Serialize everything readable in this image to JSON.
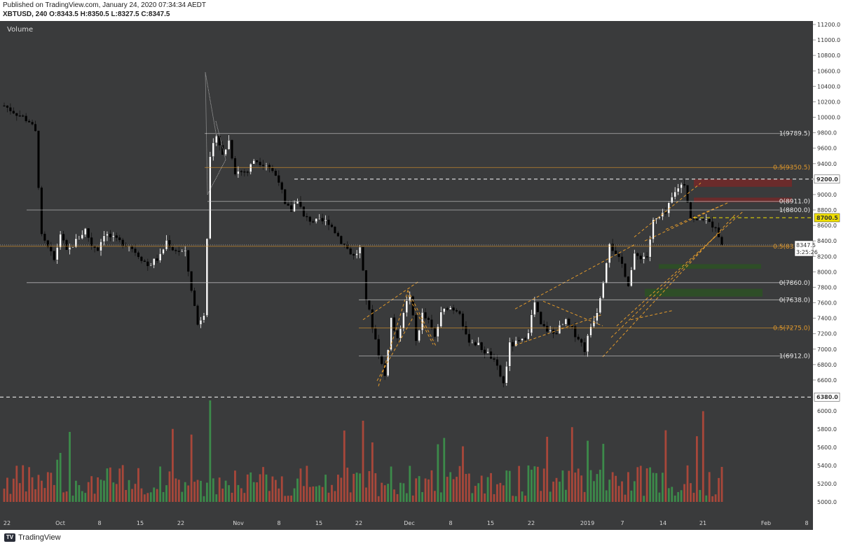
{
  "header": {
    "published": "Published on TradingView.com, January 24, 2020 07:34:34 AEDT",
    "symbol_line": "XBTUSD, 240 O:8343.5 H:8350.5 L:8327.5 C:8347.5"
  },
  "pane": {
    "volume_label": "Volume"
  },
  "colors": {
    "background": "#3a3b3c",
    "up_candle": "#ffffff",
    "down_candle": "#000000",
    "volume_up": "#3c8a4a",
    "volume_down": "#a8473a",
    "fib_orange": "#e39a2b",
    "resistance_zone": "#6e2a2a",
    "support_zone": "#2d4f26"
  },
  "footer": {
    "brand": "TradingView"
  },
  "chart_data": {
    "type": "candlestick",
    "title": "XBTUSD, 240",
    "timeframe": "4h",
    "ohlc_last": {
      "open": 8343.5,
      "high": 8350.5,
      "low": 8327.5,
      "close": 8347.5
    },
    "price_axis": {
      "ylim": [
        6300,
        11200
      ],
      "ticks": [
        "11200.0",
        "11000.0",
        "10800.0",
        "10600.0",
        "10400.0",
        "10200.0",
        "10000.0",
        "9800.0",
        "9600.0",
        "9400.0",
        "9200.0",
        "9000.0",
        "8800.0",
        "8600.0",
        "8400.0",
        "8200.0",
        "8000.0",
        "7800.0",
        "7600.0",
        "7400.0",
        "7200.0",
        "7000.0",
        "6800.0",
        "6600.0"
      ]
    },
    "volume_axis": {
      "ticks": [
        "6000.0",
        "5800.0",
        "5600.0",
        "5400.0",
        "5200.0",
        "5000.0"
      ]
    },
    "x_axis": {
      "ticks": [
        "22",
        "Oct",
        "8",
        "15",
        "22",
        "Nov",
        "8",
        "15",
        "22",
        "Dec",
        "8",
        "15",
        "22",
        "2019",
        "7",
        "14",
        "21",
        "Feb",
        "8"
      ]
    },
    "price_path": [
      [
        0,
        10150
      ],
      [
        4,
        10050
      ],
      [
        8,
        9950
      ],
      [
        10,
        9800
      ],
      [
        12,
        8450
      ],
      [
        14,
        8300
      ],
      [
        16,
        8150
      ],
      [
        18,
        8500
      ],
      [
        20,
        8250
      ],
      [
        22,
        8350
      ],
      [
        26,
        8550
      ],
      [
        28,
        8350
      ],
      [
        30,
        8300
      ],
      [
        32,
        8500
      ],
      [
        36,
        8400
      ],
      [
        40,
        8350
      ],
      [
        44,
        8180
      ],
      [
        46,
        8080
      ],
      [
        50,
        8200
      ],
      [
        52,
        8400
      ],
      [
        54,
        8300
      ],
      [
        58,
        8240
      ],
      [
        62,
        7320
      ],
      [
        64,
        7480
      ],
      [
        66,
        9450
      ],
      [
        68,
        9800
      ],
      [
        70,
        9500
      ],
      [
        72,
        9700
      ],
      [
        74,
        9300
      ],
      [
        78,
        9300
      ],
      [
        80,
        9450
      ],
      [
        84,
        9400
      ],
      [
        88,
        9200
      ],
      [
        90,
        8850
      ],
      [
        92,
        8800
      ],
      [
        94,
        8950
      ],
      [
        96,
        8700
      ],
      [
        100,
        8650
      ],
      [
        104,
        8650
      ],
      [
        108,
        8400
      ],
      [
        112,
        8200
      ],
      [
        114,
        8300
      ],
      [
        116,
        7650
      ],
      [
        118,
        7300
      ],
      [
        120,
        6950
      ],
      [
        122,
        6650
      ],
      [
        124,
        7400
      ],
      [
        126,
        7100
      ],
      [
        128,
        7500
      ],
      [
        130,
        7700
      ],
      [
        132,
        7100
      ],
      [
        134,
        7450
      ],
      [
        136,
        7350
      ],
      [
        138,
        7150
      ],
      [
        140,
        7450
      ],
      [
        142,
        7550
      ],
      [
        146,
        7500
      ],
      [
        148,
        7150
      ],
      [
        152,
        7050
      ],
      [
        156,
        6900
      ],
      [
        158,
        6750
      ],
      [
        160,
        6550
      ],
      [
        162,
        7050
      ],
      [
        166,
        7100
      ],
      [
        168,
        7250
      ],
      [
        170,
        7600
      ],
      [
        172,
        7300
      ],
      [
        176,
        7200
      ],
      [
        180,
        7350
      ],
      [
        182,
        7250
      ],
      [
        184,
        7150
      ],
      [
        186,
        7000
      ],
      [
        188,
        7300
      ],
      [
        190,
        7500
      ],
      [
        192,
        7900
      ],
      [
        194,
        8400
      ],
      [
        196,
        8200
      ],
      [
        198,
        8100
      ],
      [
        200,
        7850
      ],
      [
        202,
        8200
      ],
      [
        204,
        8200
      ],
      [
        206,
        8200
      ],
      [
        208,
        8650
      ],
      [
        210,
        8700
      ],
      [
        212,
        8750
      ],
      [
        214,
        8950
      ],
      [
        216,
        9100
      ],
      [
        218,
        9150
      ],
      [
        220,
        8700
      ],
      [
        222,
        8650
      ],
      [
        224,
        8700
      ],
      [
        226,
        8620
      ],
      [
        228,
        8600
      ],
      [
        230,
        8350
      ]
    ],
    "price_range": [
      0,
      230
    ],
    "horizontal_levels": [
      {
        "label": "1(9789.5)",
        "price": 9789.5,
        "color": "#d0d0d0"
      },
      {
        "label": "0.5(9350.5)",
        "price": 9350.5,
        "color": "#e39a2b"
      },
      {
        "label": "0(8911.0)",
        "price": 8911.0,
        "color": "#d0d0d0"
      },
      {
        "label": "1(8800.0)",
        "price": 8800.0,
        "color": "#d0d0d0"
      },
      {
        "label": "0.5(8330.0)",
        "price": 8330.0,
        "color": "#e39a2b"
      },
      {
        "label": "0(7860.0)",
        "price": 7860.0,
        "color": "#d0d0d0"
      },
      {
        "label": "0(7638.0)",
        "price": 7638.0,
        "color": "#d0d0d0"
      },
      {
        "label": "0.5(7275.0)",
        "price": 7275.0,
        "color": "#e39a2b"
      },
      {
        "label": "1(6912.0)",
        "price": 6912.0,
        "color": "#d0d0d0"
      }
    ],
    "dashed_levels": [
      {
        "price": 9200.0,
        "label": "9200.0",
        "color": "#ffffff"
      },
      {
        "price": 8700.5,
        "label": "8700.5",
        "color": "#f0e000"
      },
      {
        "price": 6380.0,
        "label": "6380.0",
        "color": "#ffffff"
      }
    ],
    "current_price": {
      "label": "8347.5",
      "countdown": "3:25:26",
      "price": 8347.5
    },
    "zones": [
      {
        "kind": "resistance",
        "from": 9100,
        "to": 9200
      },
      {
        "kind": "resistance",
        "from": 8900,
        "to": 8960
      },
      {
        "kind": "support",
        "from": 8040,
        "to": 8100
      },
      {
        "kind": "support",
        "from": 7680,
        "to": 7780
      }
    ]
  }
}
